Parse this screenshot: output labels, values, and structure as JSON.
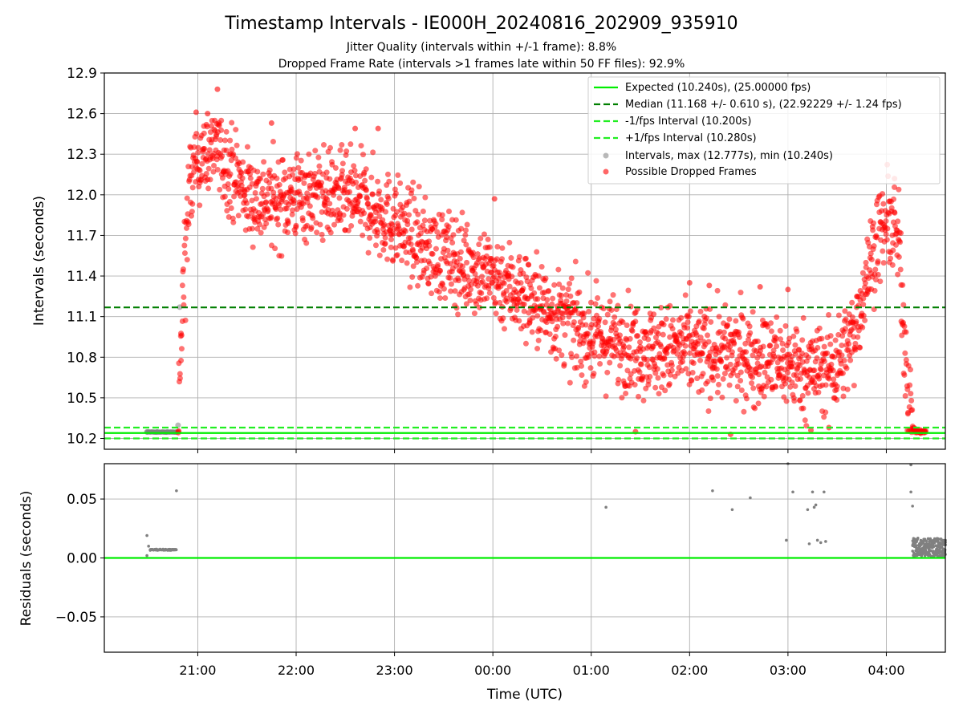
{
  "figure": {
    "title": "Timestamp Intervals - IE000H_20240816_202909_935910",
    "subtitle1": "Jitter Quality (intervals within +/-1 frame): 8.8%",
    "subtitle2": "Dropped Frame Rate (intervals >1 frames late within 50 FF files): 92.9%",
    "xlabel": "Time (UTC)"
  },
  "colors": {
    "expected": "#00ee00",
    "median": "#007f00",
    "interval_lines": "#22ee22",
    "intervals_points": "#808080",
    "dropped_points": "#ff0000",
    "grid": "#b0b0b0"
  },
  "chart_data": [
    {
      "type": "scatter",
      "ylabel": "Intervals (seconds)",
      "xlim": [
        "20:03",
        "04:36"
      ],
      "ylim": [
        10.12,
        12.9
      ],
      "x_ticks": [
        "21:00",
        "22:00",
        "23:00",
        "00:00",
        "01:00",
        "02:00",
        "03:00",
        "04:00"
      ],
      "y_ticks": [
        "10.2",
        "10.5",
        "10.8",
        "11.1",
        "11.4",
        "11.7",
        "12.0",
        "12.3",
        "12.6",
        "12.9"
      ],
      "grid": true,
      "legend_position": "top-right",
      "reference_lines": [
        {
          "name": "Expected (10.240s), (25.00000 fps)",
          "y": 10.24,
          "style": "solid"
        },
        {
          "name": "Median (11.168 +/- 0.610 s), (22.92229 +/- 1.24 fps)",
          "y": 11.168,
          "style": "dashed"
        },
        {
          "name": "-1/fps Interval (10.200s)",
          "y": 10.2,
          "style": "dashed"
        },
        {
          "name": "+1/fps Interval (10.280s)",
          "y": 10.28,
          "style": "dashed"
        }
      ],
      "series": [
        {
          "name": "Intervals, max (12.777s), min (10.240s)",
          "marker": "circle",
          "points": [
            [
              "20:29",
              10.248
            ],
            [
              "20:35",
              10.247
            ],
            [
              "20:41",
              10.247
            ],
            [
              "20:47",
              10.247
            ],
            [
              "20:48",
              10.297
            ],
            [
              "20:49",
              11.17
            ]
          ]
        },
        {
          "name": "Possible Dropped Frames",
          "marker": "circle",
          "trend": [
            [
              "20:48",
              10.3
            ],
            [
              "20:50",
              10.9
            ],
            [
              "20:52",
              11.6
            ],
            [
              "20:55",
              12.0
            ],
            [
              "21:00",
              12.3
            ],
            [
              "21:10",
              12.35
            ],
            [
              "21:20",
              12.2
            ],
            [
              "21:30",
              12.0
            ],
            [
              "21:45",
              11.95
            ],
            [
              "22:00",
              12.0
            ],
            [
              "22:20",
              12.0
            ],
            [
              "22:40",
              11.95
            ],
            [
              "23:00",
              11.8
            ],
            [
              "23:20",
              11.6
            ],
            [
              "23:40",
              11.5
            ],
            [
              "00:00",
              11.4
            ],
            [
              "00:20",
              11.25
            ],
            [
              "00:40",
              11.1
            ],
            [
              "01:00",
              10.95
            ],
            [
              "01:20",
              10.9
            ],
            [
              "01:40",
              10.85
            ],
            [
              "02:00",
              10.85
            ],
            [
              "02:20",
              10.82
            ],
            [
              "02:40",
              10.8
            ],
            [
              "03:00",
              10.75
            ],
            [
              "03:15",
              10.7
            ],
            [
              "03:30",
              10.75
            ],
            [
              "03:40",
              10.95
            ],
            [
              "03:48",
              11.4
            ],
            [
              "03:55",
              11.7
            ],
            [
              "04:03",
              11.8
            ],
            [
              "04:08",
              11.6
            ],
            [
              "04:12",
              10.8
            ],
            [
              "04:15",
              10.3
            ],
            [
              "04:18",
              10.25
            ],
            [
              "04:24",
              10.25
            ]
          ],
          "spread": 0.3,
          "outliers": [
            [
              "21:12",
              12.78
            ],
            [
              "20:59",
              12.61
            ],
            [
              "21:06",
              12.6
            ],
            [
              "21:45",
              12.53
            ],
            [
              "22:36",
              12.49
            ],
            [
              "22:50",
              12.49
            ],
            [
              "00:01",
              11.97
            ],
            [
              "04:05",
              12.12
            ],
            [
              "02:00",
              11.35
            ],
            [
              "02:12",
              11.33
            ],
            [
              "02:43",
              11.32
            ],
            [
              "03:00",
              11.3
            ],
            [
              "01:27",
              10.25
            ],
            [
              "02:25",
              10.23
            ],
            [
              "03:14",
              10.26
            ],
            [
              "03:25",
              10.28
            ]
          ]
        }
      ]
    },
    {
      "type": "scatter",
      "ylabel": "Residuals (seconds)",
      "xlim": [
        "20:03",
        "04:36"
      ],
      "ylim": [
        -0.08,
        0.08
      ],
      "y_ticks": [
        "−0.05",
        "0.00",
        "0.05"
      ],
      "grid": true,
      "reference_lines": [
        {
          "y": 0.0,
          "style": "solid"
        }
      ],
      "series": [
        {
          "name": "residuals",
          "points": [
            [
              "20:29",
              0.019
            ],
            [
              "20:29",
              0.002
            ],
            [
              "20:30",
              0.01
            ],
            [
              "20:31",
              0.007
            ],
            [
              "20:47",
              0.057
            ],
            [
              "01:09",
              0.043
            ],
            [
              "02:14",
              0.057
            ],
            [
              "02:26",
              0.041
            ],
            [
              "02:37",
              0.051
            ],
            [
              "02:59",
              0.015
            ],
            [
              "03:00",
              0.08
            ],
            [
              "03:03",
              0.056
            ],
            [
              "03:12",
              0.041
            ],
            [
              "03:13",
              0.012
            ],
            [
              "03:15",
              0.056
            ],
            [
              "03:16",
              0.043
            ],
            [
              "03:17",
              0.045
            ],
            [
              "03:18",
              0.015
            ],
            [
              "03:20",
              0.013
            ],
            [
              "03:22",
              0.056
            ],
            [
              "03:23",
              0.014
            ],
            [
              "04:15",
              0.079
            ],
            [
              "04:15",
              0.056
            ],
            [
              "04:16",
              0.044
            ]
          ],
          "clusters": [
            {
              "from": "20:31",
              "to": "20:47",
              "y": 0.007
            },
            {
              "from": "04:16",
              "to": "04:36",
              "y_min": 0.001,
              "y_max": 0.017
            }
          ]
        }
      ]
    }
  ]
}
